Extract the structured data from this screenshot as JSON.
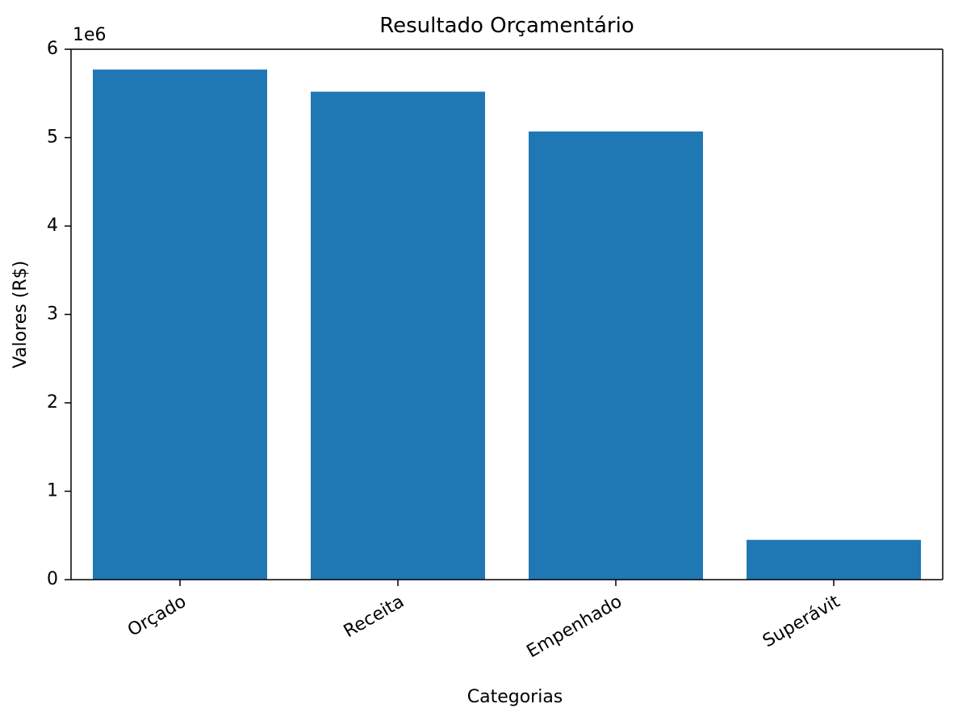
{
  "chart_data": {
    "type": "bar",
    "title": "Resultado Orçamentário",
    "xlabel": "Categorias",
    "ylabel": "Valores (R$)",
    "y_offset_label": "1e6",
    "categories": [
      "Orçado",
      "Receita",
      "Empenhado",
      "Superávit"
    ],
    "values": [
      5770000,
      5520000,
      5070000,
      450000
    ],
    "ylim": [
      0,
      6000000
    ],
    "yticks": [
      0,
      1000000,
      2000000,
      3000000,
      4000000,
      5000000,
      6000000
    ],
    "ytick_labels": [
      "0",
      "1",
      "2",
      "3",
      "4",
      "5",
      "6"
    ],
    "bar_color": "#1f77b4",
    "grid": false,
    "legend": "none",
    "xtick_rotation": "30 degrees"
  }
}
